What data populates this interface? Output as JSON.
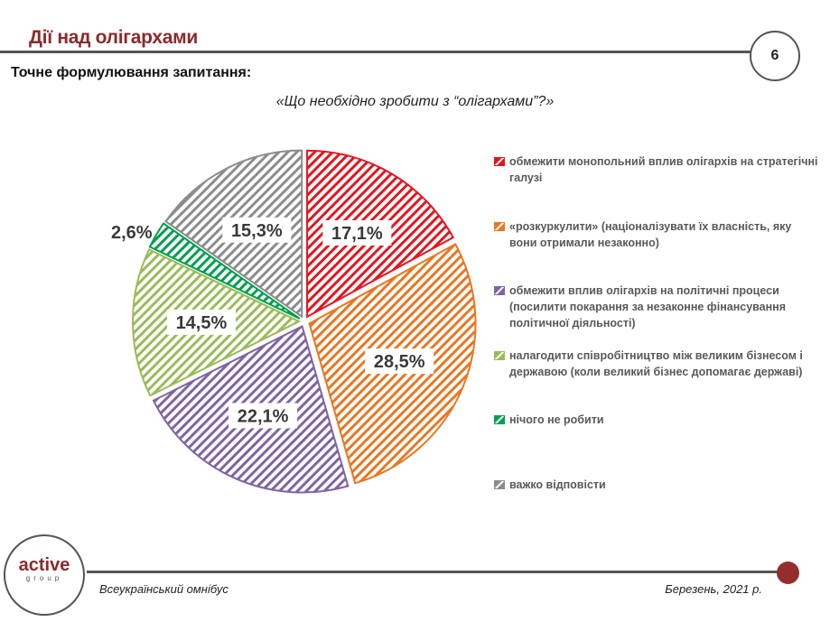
{
  "header": {
    "title": "Дії над олігархами",
    "page_number": "6"
  },
  "subtitle": "Точне формулювання запитання:",
  "question": "«Що необхідно зробити з “олігархами”?»",
  "chart_data": {
    "type": "pie",
    "title": "",
    "pattern": "diagonal-hatch",
    "legend_position": "right",
    "categories": [
      "обмежити монопольний вплив олігархів на стратегічні галузі",
      "«розкуркулити» (націоналізувати їх власність, яку вони отримали незаконно)",
      "обмежити вплив олігархів на політичні процеси (посилити покарання за незаконне фінансування політичної діяльності)",
      "налагодити співробітництво між великим бізнесом і державою (коли великий бізнес допомагає державі)",
      "нічого не робити",
      "важко відповісти"
    ],
    "values": [
      17.1,
      28.5,
      22.1,
      14.5,
      2.6,
      15.3
    ],
    "labels": [
      "17,1%",
      "28,5%",
      "22,1%",
      "14,5%",
      "2,6%",
      "15,3%"
    ],
    "colors": [
      "#e3161f",
      "#e87722",
      "#8064a2",
      "#9bbb59",
      "#00a050",
      "#8c8c8c"
    ]
  },
  "footer": {
    "logo_main": "active",
    "logo_sub": "group",
    "left": "Всеукраїнський омнібус",
    "right": "Березень, 2021 р."
  }
}
